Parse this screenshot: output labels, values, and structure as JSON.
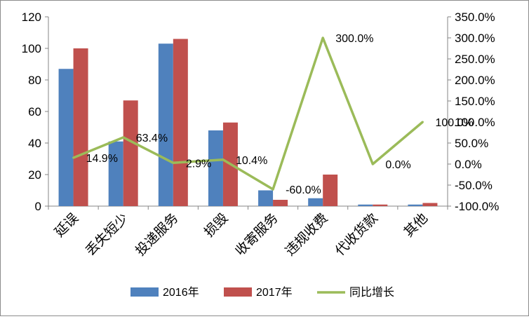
{
  "chart_data": {
    "type": "bar",
    "categories": [
      "延误",
      "丢失短少",
      "投递服务",
      "损毁",
      "收寄服务",
      "违规收费",
      "代收货款",
      "其他"
    ],
    "series": [
      {
        "name": "2016年",
        "type": "bar",
        "axis": "left",
        "color": "#4f81bd",
        "values": [
          87,
          41,
          103,
          48,
          10,
          5,
          1,
          1
        ]
      },
      {
        "name": "2017年",
        "type": "bar",
        "axis": "left",
        "color": "#c0504d",
        "values": [
          100,
          67,
          106,
          53,
          4,
          20,
          1,
          2
        ]
      },
      {
        "name": "同比增长",
        "type": "line",
        "axis": "right",
        "color": "#9bbb59",
        "values": [
          14.9,
          63.4,
          2.9,
          10.4,
          -60.0,
          300.0,
          0.0,
          100.0
        ],
        "data_labels": [
          "14.9%",
          "63.4%",
          "2.9%",
          "10.4%",
          "-60.0%",
          "300.0%",
          "0.0%",
          "100.0%"
        ]
      }
    ],
    "left_axis": {
      "min": 0,
      "max": 120,
      "ticks": [
        "0",
        "20",
        "40",
        "60",
        "80",
        "100",
        "120"
      ]
    },
    "right_axis": {
      "min": -100,
      "max": 350,
      "ticks": [
        "-100.0%",
        "-50.0%",
        "0.0%",
        "50.0%",
        "100.0%",
        "150.0%",
        "200.0%",
        "250.0%",
        "300.0%",
        "350.0%"
      ]
    },
    "grid": false,
    "legend_position": "bottom"
  }
}
